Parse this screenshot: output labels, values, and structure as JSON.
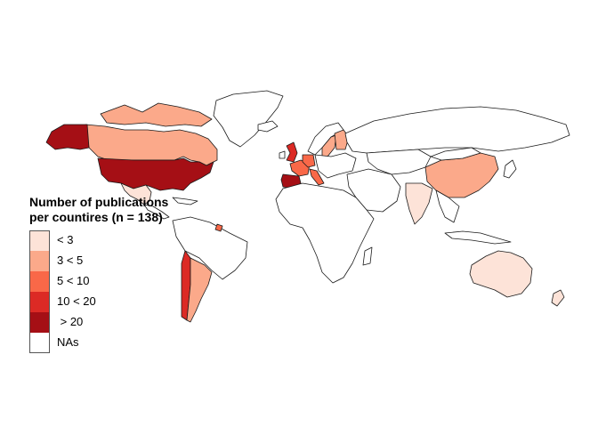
{
  "legend": {
    "title": "Number of publications\nper countires (n = 138)",
    "items": [
      {
        "label": "< 3",
        "color": "#fde3d8"
      },
      {
        "label": "3 < 5",
        "color": "#fba98a"
      },
      {
        "label": "5 < 10",
        "color": "#f96848"
      },
      {
        "label": "10 < 20",
        "color": "#dc2a25"
      },
      {
        "label": " > 20",
        "color": "#a50f15"
      },
      {
        "label": "NAs",
        "color": "#ffffff"
      }
    ]
  },
  "map": {
    "type": "choropleth",
    "region": "world",
    "countries": [
      {
        "country": "USA",
        "class": " > 20"
      },
      {
        "country": "Spain",
        "class": " > 20"
      },
      {
        "country": "United Kingdom",
        "class": "10 < 20"
      },
      {
        "country": "Italy",
        "class": "5 < 10"
      },
      {
        "country": "France",
        "class": "5 < 10"
      },
      {
        "country": "Germany",
        "class": "5 < 10"
      },
      {
        "country": "Canada",
        "class": "3 < 5"
      },
      {
        "country": "China",
        "class": "3 < 5"
      },
      {
        "country": "Argentina",
        "class": "3 < 5"
      },
      {
        "country": "Sweden",
        "class": "3 < 5"
      },
      {
        "country": "Finland",
        "class": "3 < 5"
      },
      {
        "country": "India",
        "class": "< 3"
      },
      {
        "country": "Australia",
        "class": "< 3"
      },
      {
        "country": "Mexico",
        "class": "< 3"
      },
      {
        "country": "New Zealand",
        "class": "< 3"
      },
      {
        "country": "Chile",
        "class": "10 < 20"
      }
    ]
  }
}
